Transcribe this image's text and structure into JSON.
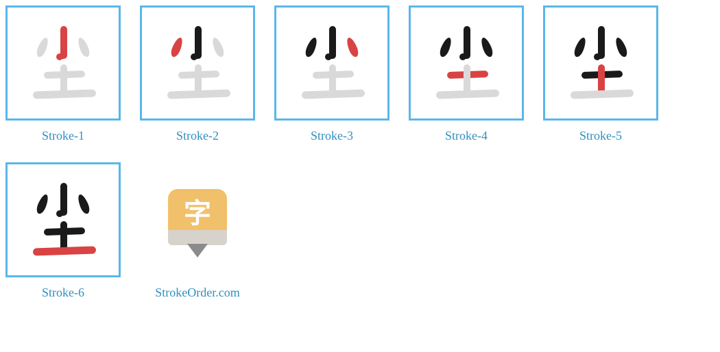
{
  "border_color": "#5ab6ea",
  "caption_color": "#2f8fbf",
  "stroke_colors": {
    "faded": "#d9d9d9",
    "drawn": "#1a1a1a",
    "current": "#d94343"
  },
  "logo_glyph": "字",
  "site_caption": "StrokeOrder.com",
  "strokes": [
    {
      "id": "s1"
    },
    {
      "id": "s2"
    },
    {
      "id": "s3"
    },
    {
      "id": "s4"
    },
    {
      "id": "s5"
    },
    {
      "id": "s6"
    }
  ],
  "panels": [
    {
      "caption": "Stroke-1",
      "current": 1
    },
    {
      "caption": "Stroke-2",
      "current": 2
    },
    {
      "caption": "Stroke-3",
      "current": 3
    },
    {
      "caption": "Stroke-4",
      "current": 4
    },
    {
      "caption": "Stroke-5",
      "current": 5
    },
    {
      "caption": "Stroke-6",
      "current": 6
    }
  ]
}
